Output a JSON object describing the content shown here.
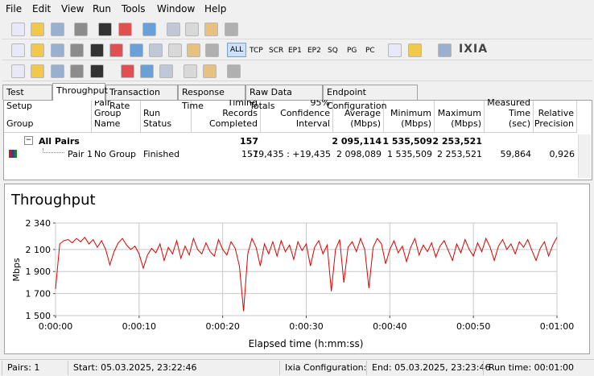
{
  "menu": [
    "File",
    "Edit",
    "View",
    "Run",
    "Tools",
    "Window",
    "Help"
  ],
  "toolbar": {
    "filters": [
      {
        "label": "ALL",
        "active": true
      },
      {
        "label": "TCP"
      },
      {
        "label": "SCR"
      },
      {
        "label": "EP1"
      },
      {
        "label": "EP2"
      },
      {
        "label": "SQ"
      },
      {
        "label": "PG"
      },
      {
        "label": "PC"
      }
    ],
    "logo": "IXIA"
  },
  "tabs": [
    {
      "label": "Test Setup"
    },
    {
      "label": "Throughput",
      "active": true
    },
    {
      "label": "Transaction Rate"
    },
    {
      "label": "Response Time"
    },
    {
      "label": "Raw Data Totals"
    },
    {
      "label": "Endpoint Configuration"
    }
  ],
  "table": {
    "columns": [
      "Group",
      "Pair Group Name",
      "Run Status",
      "Timing Records Completed",
      "95% Confidence Interval",
      "Average (Mbps)",
      "Minimum (Mbps)",
      "Maximum (Mbps)",
      "Measured Time (sec)",
      "Relative Precision"
    ],
    "rows": [
      [
        "All Pairs",
        null,
        null,
        "157",
        null,
        "2 095,114",
        "1 535,509",
        "2 253,521",
        null,
        null
      ],
      [
        "Pair 1",
        "No Group",
        "Finished",
        "157",
        "-19,435 : +19,435",
        "2 098,089",
        "1 535,509",
        "2 253,521",
        "59,864",
        "0,926"
      ]
    ]
  },
  "chart_data": {
    "type": "line",
    "title": "Throughput",
    "xlabel": "Elapsed time (h:mm:ss)",
    "ylabel": "Mbps",
    "xlim": [
      0,
      60
    ],
    "ylim": [
      1500,
      2340
    ],
    "xticks": [
      {
        "value": 0,
        "label": "0:00:00"
      },
      {
        "value": 10,
        "label": "0:00:10"
      },
      {
        "value": 20,
        "label": "0:00:20"
      },
      {
        "value": 30,
        "label": "0:00:30"
      },
      {
        "value": 40,
        "label": "0:00:40"
      },
      {
        "value": 50,
        "label": "0:00:50"
      },
      {
        "value": 60,
        "label": "0:01:00"
      }
    ],
    "yticks": [
      {
        "value": 1500,
        "label": "1 500"
      },
      {
        "value": 1700,
        "label": "1 700"
      },
      {
        "value": 1900,
        "label": "1 900"
      },
      {
        "value": 2100,
        "label": "2 100"
      },
      {
        "value": 2340,
        "label": "2 340"
      }
    ],
    "grid": true,
    "series": [
      {
        "name": "Pair 1",
        "color": "#e00000",
        "x": [
          0,
          0.5,
          1,
          1.5,
          2,
          2.5,
          3,
          3.5,
          4,
          4.5,
          5,
          5.5,
          6,
          6.5,
          7,
          7.5,
          8,
          8.5,
          9,
          9.5,
          10,
          10.5,
          11,
          11.5,
          12,
          12.5,
          13,
          13.5,
          14,
          14.5,
          15,
          15.5,
          16,
          16.5,
          17,
          17.5,
          18,
          18.5,
          19,
          19.5,
          20,
          20.5,
          21,
          21.5,
          22,
          22.5,
          23,
          23.5,
          24,
          24.5,
          25,
          25.5,
          26,
          26.5,
          27,
          27.5,
          28,
          28.5,
          29,
          29.5,
          30,
          30.5,
          31,
          31.5,
          32,
          32.5,
          33,
          33.5,
          34,
          34.5,
          35,
          35.5,
          36,
          36.5,
          37,
          37.5,
          38,
          38.5,
          39,
          39.5,
          40,
          40.5,
          41,
          41.5,
          42,
          42.5,
          43,
          43.5,
          44,
          44.5,
          45,
          45.5,
          46,
          46.5,
          47,
          47.5,
          48,
          48.5,
          49,
          49.5,
          50,
          50.5,
          51,
          51.5,
          52,
          52.5,
          53,
          53.5,
          54,
          54.5,
          55,
          55.5,
          56,
          56.5,
          57,
          57.5,
          58,
          58.5,
          59,
          59.5,
          60
        ],
        "values": [
          1740,
          2150,
          2180,
          2190,
          2160,
          2200,
          2170,
          2210,
          2150,
          2190,
          2120,
          2180,
          2100,
          1960,
          2080,
          2160,
          2200,
          2140,
          2100,
          2130,
          2060,
          1930,
          2050,
          2110,
          2070,
          2150,
          2000,
          2120,
          2060,
          2180,
          2020,
          2130,
          2050,
          2200,
          2100,
          2060,
          2160,
          2080,
          2040,
          2190,
          2100,
          2050,
          2170,
          2110,
          1950,
          1540,
          2060,
          2200,
          2120,
          1950,
          2150,
          2060,
          2170,
          2040,
          2180,
          2080,
          2140,
          2010,
          2170,
          2090,
          2150,
          1950,
          2120,
          2180,
          2060,
          2140,
          1720,
          2100,
          2190,
          1800,
          2120,
          2170,
          2080,
          2200,
          2100,
          1750,
          2120,
          2200,
          2150,
          1970,
          2100,
          2180,
          2070,
          2130,
          1990,
          2120,
          2200,
          2050,
          2140,
          2080,
          2160,
          2030,
          2130,
          2180,
          2090,
          2000,
          2150,
          2070,
          2190,
          2100,
          2040,
          2160,
          2080,
          2200,
          2120,
          2000,
          2130,
          2190,
          2100,
          2150,
          2060,
          2170,
          2120,
          2190,
          2090,
          2000,
          2110,
          2170,
          2040,
          2140,
          2210
        ]
      }
    ]
  },
  "status_bar": [
    "Pairs: 1",
    "Start: 05.03.2025, 23:22:46",
    "Ixia Configuration:",
    "End: 05.03.2025, 23:23:46",
    "Run time: 00:01:00"
  ]
}
